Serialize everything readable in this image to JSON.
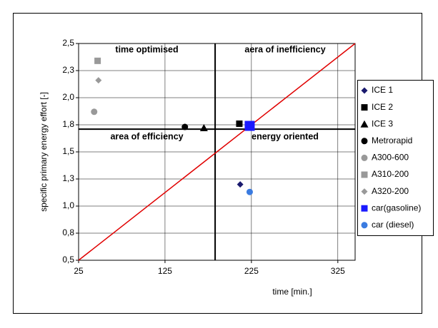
{
  "chart_data": {
    "type": "scatter",
    "x_label": "time [min.]",
    "y_label": "specific primary energy effort [-]",
    "xlim": [
      25,
      345
    ],
    "xticks": [
      25,
      125,
      225,
      325
    ],
    "ylim": [
      0.5,
      2.5
    ],
    "yticks": [
      {
        "value": 0.5,
        "label": "0,5"
      },
      {
        "value": 0.75,
        "label": "0,8"
      },
      {
        "value": 1.0,
        "label": "1,0"
      },
      {
        "value": 1.25,
        "label": "1,3"
      },
      {
        "value": 1.5,
        "label": "1,5"
      },
      {
        "value": 1.75,
        "label": "1,8"
      },
      {
        "value": 2.0,
        "label": "2,0"
      },
      {
        "value": 2.25,
        "label": "2,3"
      },
      {
        "value": 2.5,
        "label": "2,5"
      }
    ],
    "grid": true,
    "legend": "right",
    "quadrant_labels": [
      "time optimised",
      "aera of inefficiency",
      "area of efficiency",
      "energy oriented"
    ],
    "quadrant_divider": {
      "x": 183,
      "y": 1.71
    },
    "reference_line": {
      "x": [
        25,
        345
      ],
      "y": [
        0.5,
        2.5
      ],
      "color": "#e00000"
    },
    "series": [
      {
        "name": "ICE 1",
        "color": "#1a1a6e",
        "marker": "diamond",
        "x": [
          212
        ],
        "values": [
          1.2
        ]
      },
      {
        "name": "ICE 2",
        "color": "#000000",
        "marker": "square",
        "x": [
          211
        ],
        "values": [
          1.76
        ]
      },
      {
        "name": "ICE 3",
        "color": "#000000",
        "marker": "triangle",
        "x": [
          170
        ],
        "values": [
          1.72
        ]
      },
      {
        "name": "Metrorapid",
        "color": "#000000",
        "marker": "circle",
        "x": [
          148
        ],
        "values": [
          1.73
        ]
      },
      {
        "name": "A300-600",
        "color": "#999999",
        "marker": "circle",
        "x": [
          43
        ],
        "values": [
          1.87
        ]
      },
      {
        "name": "A310-200",
        "color": "#999999",
        "marker": "square",
        "x": [
          47
        ],
        "values": [
          2.34
        ]
      },
      {
        "name": "A320-200",
        "color": "#999999",
        "marker": "diamond",
        "x": [
          48
        ],
        "values": [
          2.16
        ]
      },
      {
        "name": "car(gasoline)",
        "color": "#1a1aff",
        "marker": "bigsquare",
        "x": [
          223
        ],
        "values": [
          1.74
        ]
      },
      {
        "name": "car (diesel)",
        "color": "#3a7be0",
        "marker": "circle",
        "x": [
          223
        ],
        "values": [
          1.13
        ]
      }
    ]
  }
}
